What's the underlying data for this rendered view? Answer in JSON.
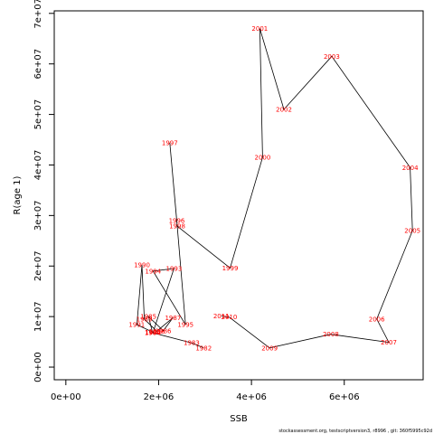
{
  "chart_data": {
    "type": "line",
    "xlabel": "SSB",
    "ylabel": "R(age 1)",
    "xlim": [
      -250000,
      7700000
    ],
    "ylim": [
      -2500000,
      70500000
    ],
    "x_ticks": [
      0,
      2000000,
      4000000,
      6000000
    ],
    "x_tick_labels": [
      "0e+00",
      "2e+06",
      "4e+06",
      "6e+06"
    ],
    "y_ticks": [
      0,
      10000000,
      20000000,
      30000000,
      40000000,
      50000000,
      60000000,
      70000000
    ],
    "y_tick_labels": [
      "0e+00",
      "1e+07",
      "2e+07",
      "3e+07",
      "4e+07",
      "5e+07",
      "6e+07",
      "7e+07"
    ],
    "line_color": "#000000",
    "label_color": "#ff0000",
    "points": [
      {
        "year": "1982",
        "x": 2970000,
        "y": 3800000
      },
      {
        "year": "1983",
        "x": 2710000,
        "y": 4800000
      },
      {
        "year": "1984",
        "x": 1870000,
        "y": 6800000
      },
      {
        "year": "1985",
        "x": 1780000,
        "y": 10000000
      },
      {
        "year": "1986",
        "x": 2100000,
        "y": 7200000
      },
      {
        "year": "1987",
        "x": 2310000,
        "y": 9800000
      },
      {
        "year": "1988",
        "x": 1960000,
        "y": 7100000
      },
      {
        "year": "1989",
        "x": 1690000,
        "y": 9500000
      },
      {
        "year": "1990",
        "x": 1640000,
        "y": 20200000
      },
      {
        "year": "1991",
        "x": 1530000,
        "y": 8400000
      },
      {
        "year": "1992",
        "x": 1880000,
        "y": 6900000
      },
      {
        "year": "1993",
        "x": 2330000,
        "y": 19500000
      },
      {
        "year": "1994",
        "x": 1880000,
        "y": 19000000
      },
      {
        "year": "1995",
        "x": 2580000,
        "y": 8400000
      },
      {
        "year": "1996",
        "x": 2390000,
        "y": 29000000
      },
      {
        "year": "1997",
        "x": 2240000,
        "y": 44400000
      },
      {
        "year": "1998",
        "x": 2400000,
        "y": 27900000
      },
      {
        "year": "1999",
        "x": 3540000,
        "y": 19600000
      },
      {
        "year": "2000",
        "x": 4240000,
        "y": 41500000
      },
      {
        "year": "2001",
        "x": 4180000,
        "y": 67000000
      },
      {
        "year": "2002",
        "x": 4700000,
        "y": 51000000
      },
      {
        "year": "2003",
        "x": 5730000,
        "y": 61500000
      },
      {
        "year": "2004",
        "x": 7420000,
        "y": 39500000
      },
      {
        "year": "2005",
        "x": 7470000,
        "y": 27000000
      },
      {
        "year": "2006",
        "x": 6700000,
        "y": 9500000
      },
      {
        "year": "2007",
        "x": 6960000,
        "y": 4900000
      },
      {
        "year": "2008",
        "x": 5710000,
        "y": 6500000
      },
      {
        "year": "2009",
        "x": 4390000,
        "y": 3800000
      },
      {
        "year": "2010",
        "x": 3520000,
        "y": 9900000
      },
      {
        "year": "2011",
        "x": 3350000,
        "y": 10100000
      }
    ]
  },
  "footer": "stockassessment.org, testscriptversion3, r8996 , git: 360f5995c92d"
}
